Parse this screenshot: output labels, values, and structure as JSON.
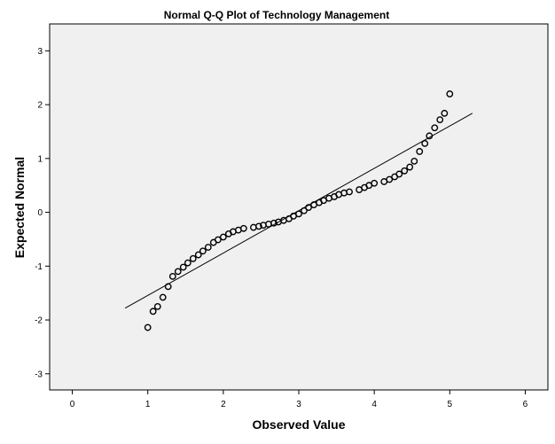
{
  "chart_data": {
    "type": "scatter",
    "title": "Normal Q-Q Plot of Technology Management",
    "xlabel": "Observed Value",
    "ylabel": "Expected Normal",
    "xlim": [
      -0.3,
      6.3
    ],
    "ylim": [
      -3.3,
      3.5
    ],
    "x_ticks": [
      0,
      1,
      2,
      3,
      4,
      5,
      6
    ],
    "y_ticks": [
      -3,
      -2,
      -1,
      0,
      1,
      2,
      3
    ],
    "grid": false,
    "reference_line": {
      "x": [
        0.7,
        5.3
      ],
      "y": [
        -1.78,
        1.84
      ]
    },
    "points": [
      {
        "x": 1.0,
        "y": -2.14
      },
      {
        "x": 1.07,
        "y": -1.84
      },
      {
        "x": 1.13,
        "y": -1.75
      },
      {
        "x": 1.2,
        "y": -1.58
      },
      {
        "x": 1.27,
        "y": -1.38
      },
      {
        "x": 1.33,
        "y": -1.19
      },
      {
        "x": 1.4,
        "y": -1.1
      },
      {
        "x": 1.47,
        "y": -1.02
      },
      {
        "x": 1.53,
        "y": -0.94
      },
      {
        "x": 1.6,
        "y": -0.86
      },
      {
        "x": 1.67,
        "y": -0.79
      },
      {
        "x": 1.73,
        "y": -0.72
      },
      {
        "x": 1.8,
        "y": -0.65
      },
      {
        "x": 1.87,
        "y": -0.56
      },
      {
        "x": 1.93,
        "y": -0.51
      },
      {
        "x": 2.0,
        "y": -0.46
      },
      {
        "x": 2.07,
        "y": -0.4
      },
      {
        "x": 2.13,
        "y": -0.36
      },
      {
        "x": 2.2,
        "y": -0.33
      },
      {
        "x": 2.27,
        "y": -0.3
      },
      {
        "x": 2.4,
        "y": -0.28
      },
      {
        "x": 2.47,
        "y": -0.26
      },
      {
        "x": 2.53,
        "y": -0.24
      },
      {
        "x": 2.6,
        "y": -0.22
      },
      {
        "x": 2.67,
        "y": -0.2
      },
      {
        "x": 2.73,
        "y": -0.18
      },
      {
        "x": 2.8,
        "y": -0.15
      },
      {
        "x": 2.87,
        "y": -0.12
      },
      {
        "x": 2.93,
        "y": -0.07
      },
      {
        "x": 3.0,
        "y": -0.03
      },
      {
        "x": 3.07,
        "y": 0.03
      },
      {
        "x": 3.13,
        "y": 0.09
      },
      {
        "x": 3.2,
        "y": 0.14
      },
      {
        "x": 3.27,
        "y": 0.18
      },
      {
        "x": 3.33,
        "y": 0.22
      },
      {
        "x": 3.4,
        "y": 0.26
      },
      {
        "x": 3.47,
        "y": 0.29
      },
      {
        "x": 3.53,
        "y": 0.33
      },
      {
        "x": 3.6,
        "y": 0.36
      },
      {
        "x": 3.67,
        "y": 0.38
      },
      {
        "x": 3.8,
        "y": 0.42
      },
      {
        "x": 3.87,
        "y": 0.46
      },
      {
        "x": 3.93,
        "y": 0.5
      },
      {
        "x": 4.0,
        "y": 0.54
      },
      {
        "x": 4.13,
        "y": 0.57
      },
      {
        "x": 4.2,
        "y": 0.61
      },
      {
        "x": 4.27,
        "y": 0.66
      },
      {
        "x": 4.33,
        "y": 0.71
      },
      {
        "x": 4.4,
        "y": 0.77
      },
      {
        "x": 4.47,
        "y": 0.84
      },
      {
        "x": 4.53,
        "y": 0.95
      },
      {
        "x": 4.6,
        "y": 1.13
      },
      {
        "x": 4.67,
        "y": 1.28
      },
      {
        "x": 4.73,
        "y": 1.42
      },
      {
        "x": 4.8,
        "y": 1.57
      },
      {
        "x": 4.87,
        "y": 1.72
      },
      {
        "x": 4.93,
        "y": 1.84
      },
      {
        "x": 5.0,
        "y": 2.2
      }
    ]
  }
}
